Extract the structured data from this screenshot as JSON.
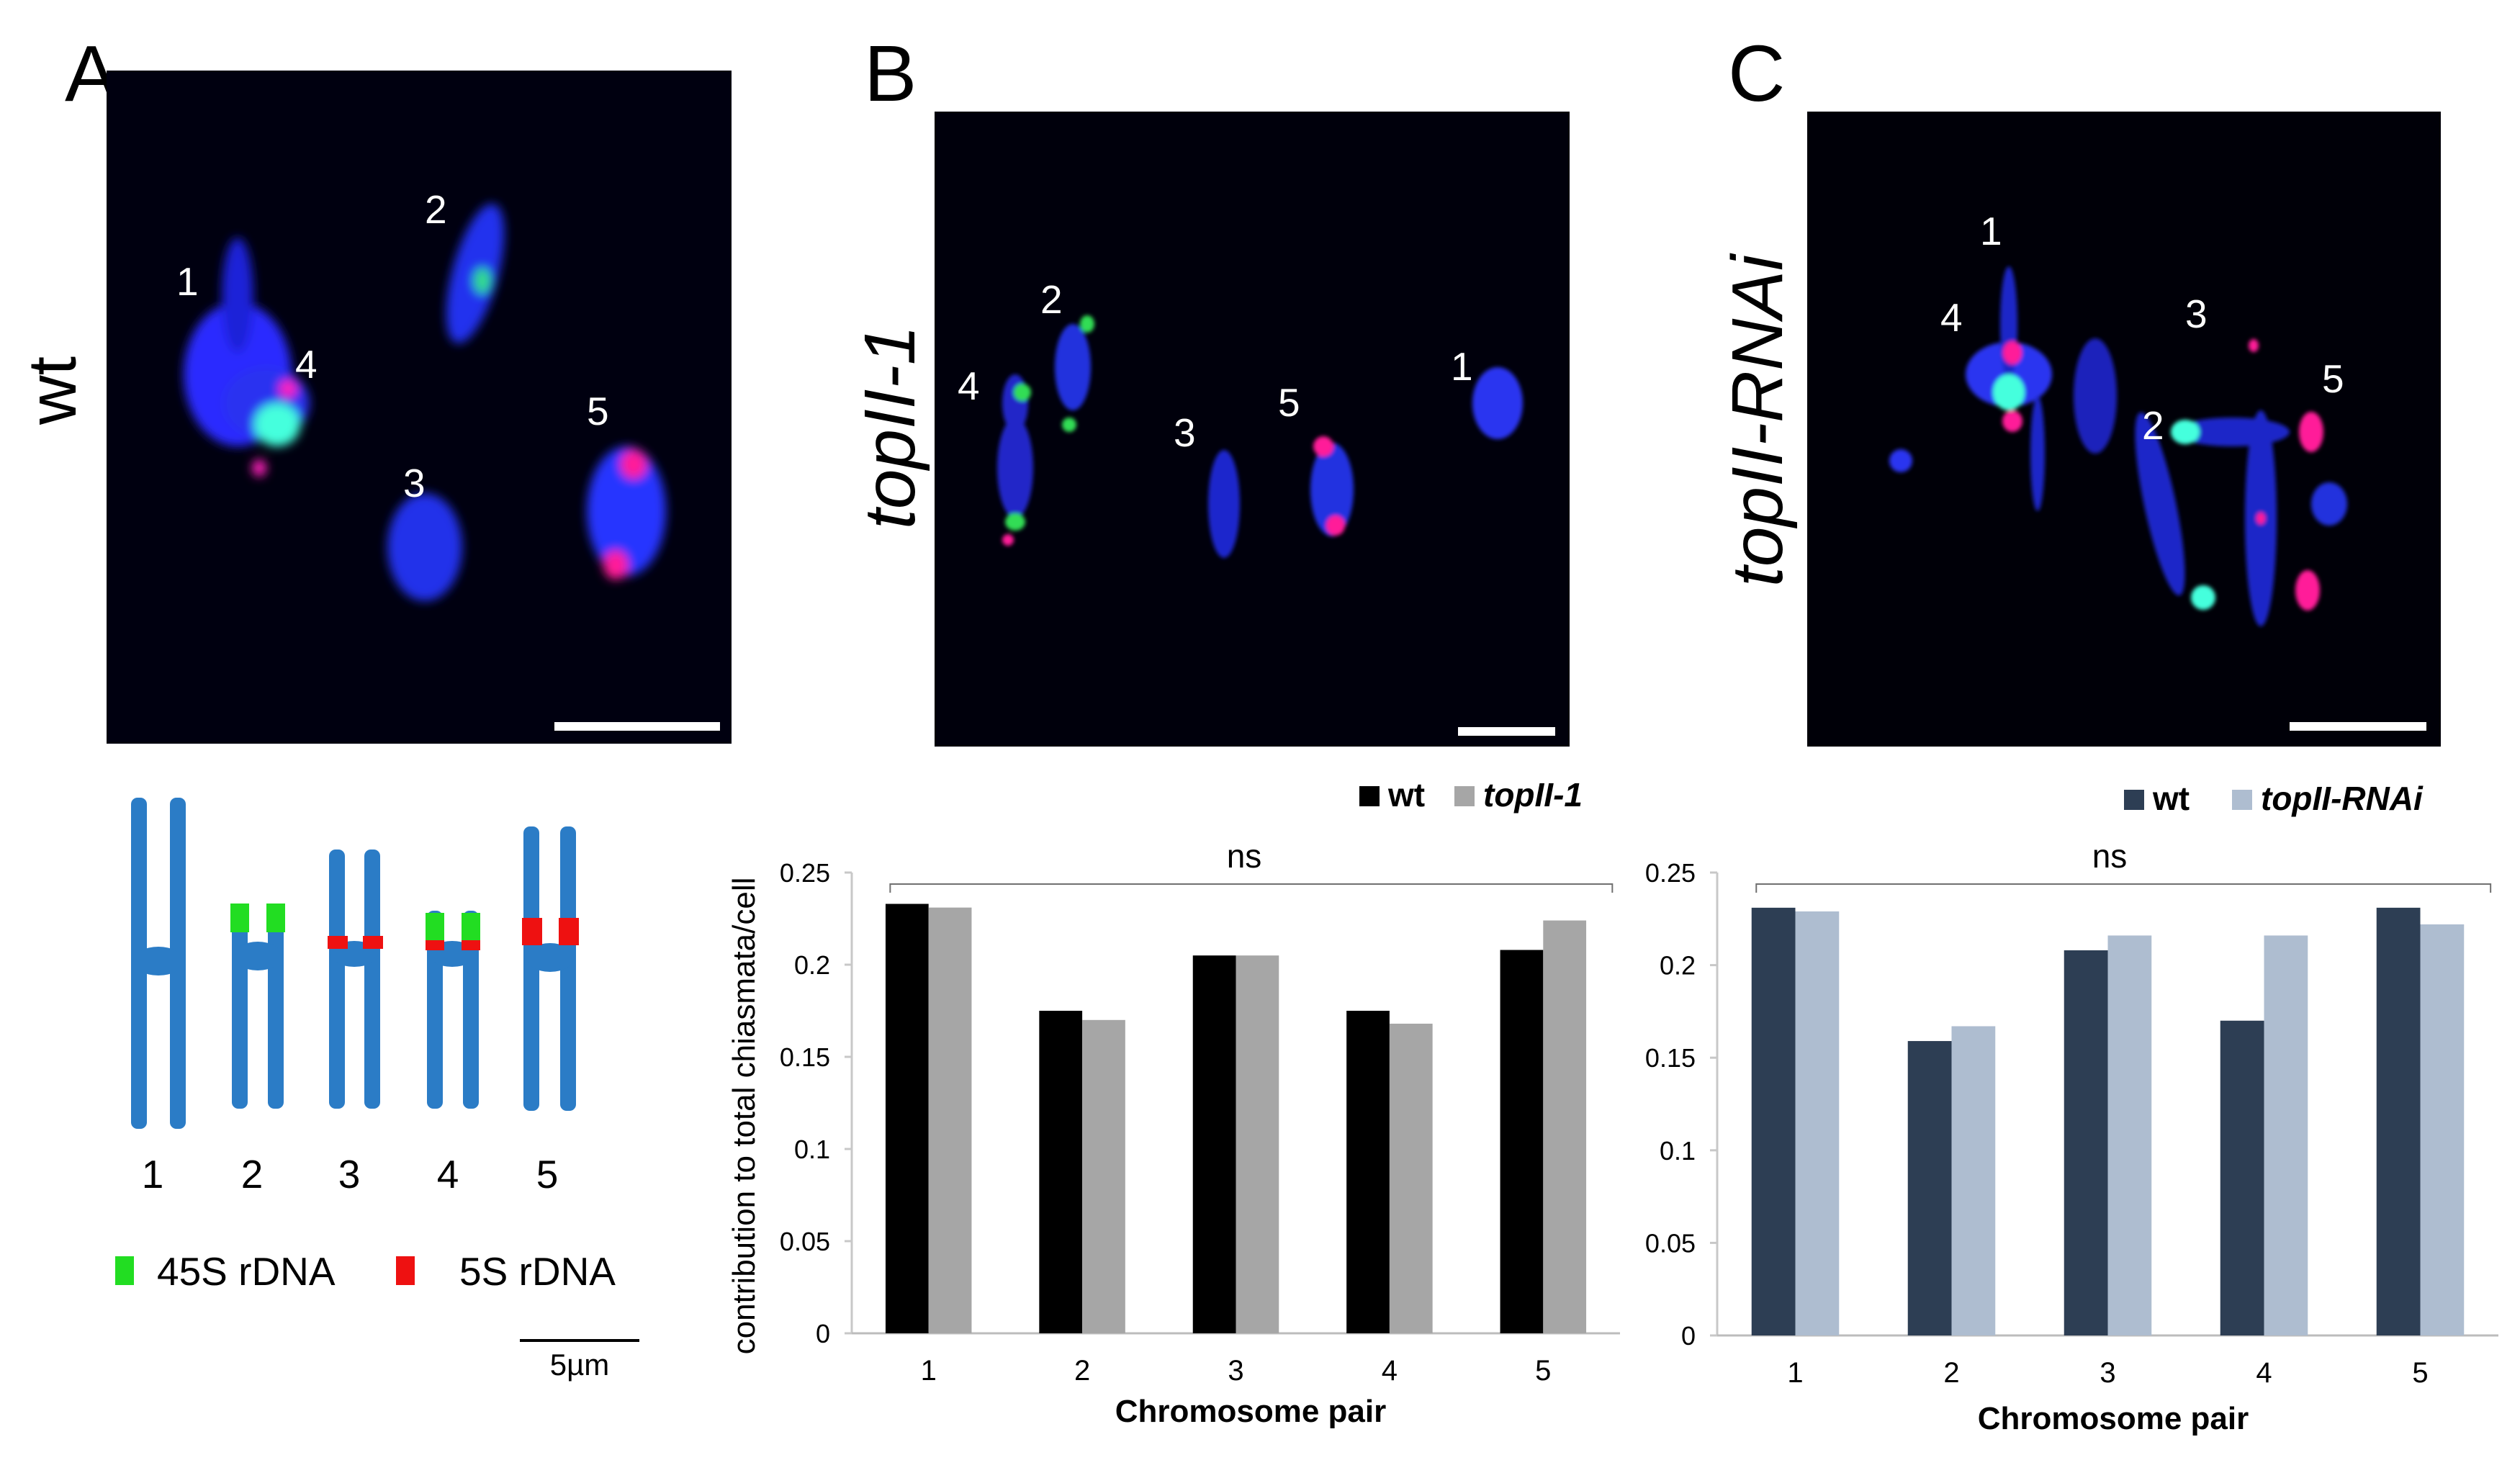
{
  "panels": {
    "a": {
      "letter": "A",
      "genotype": "wt",
      "chrom_labels": [
        "1",
        "2",
        "3",
        "4",
        "5"
      ]
    },
    "b": {
      "letter": "B",
      "genotype": "topII-1",
      "chrom_labels": [
        "2",
        "4",
        "3",
        "5",
        "1"
      ]
    },
    "c": {
      "letter": "C",
      "genotype": "topII-RNAi",
      "chrom_labels": [
        "1",
        "4",
        "3",
        "2",
        "5"
      ]
    }
  },
  "diagram": {
    "numbers": [
      "1",
      "2",
      "3",
      "4",
      "5"
    ],
    "legend": [
      {
        "label": "45S rDNA",
        "color": "#22dd22"
      },
      {
        "label": "5S rDNA",
        "color": "#ee1111"
      }
    ],
    "scale_label": "5µm"
  },
  "colors": {
    "chromosome": "#2b7cc6",
    "wt_b": "#000000",
    "topII1": "#a6a6a6",
    "wt_c": "#2d3e54",
    "topIIRNAi": "#aebdd0"
  },
  "chart_data": [
    {
      "type": "bar",
      "categories": [
        "1",
        "2",
        "3",
        "4",
        "5"
      ],
      "series": [
        {
          "name": "wt",
          "values": [
            0.233,
            0.175,
            0.205,
            0.175,
            0.208
          ]
        },
        {
          "name": "topII-1",
          "values": [
            0.231,
            0.17,
            0.205,
            0.168,
            0.224
          ]
        }
      ],
      "ylim": [
        0,
        0.25
      ],
      "yticks": [
        "0",
        "0.05",
        "0.1",
        "0.15",
        "0.2",
        "0.25"
      ],
      "xlabel": "Chromosome pair",
      "ylabel": "contribution to total chiasmata/cell",
      "annotation": "ns"
    },
    {
      "type": "bar",
      "categories": [
        "1",
        "2",
        "3",
        "4",
        "5"
      ],
      "series": [
        {
          "name": "wt",
          "values": [
            0.231,
            0.159,
            0.208,
            0.17,
            0.231
          ]
        },
        {
          "name": "topII-RNAi",
          "values": [
            0.229,
            0.167,
            0.216,
            0.216,
            0.222
          ]
        }
      ],
      "ylim": [
        0,
        0.25
      ],
      "yticks": [
        "0",
        "0.05",
        "0.1",
        "0.15",
        "0.2",
        "0.25"
      ],
      "xlabel": "Chromosome pair",
      "annotation": "ns"
    }
  ]
}
